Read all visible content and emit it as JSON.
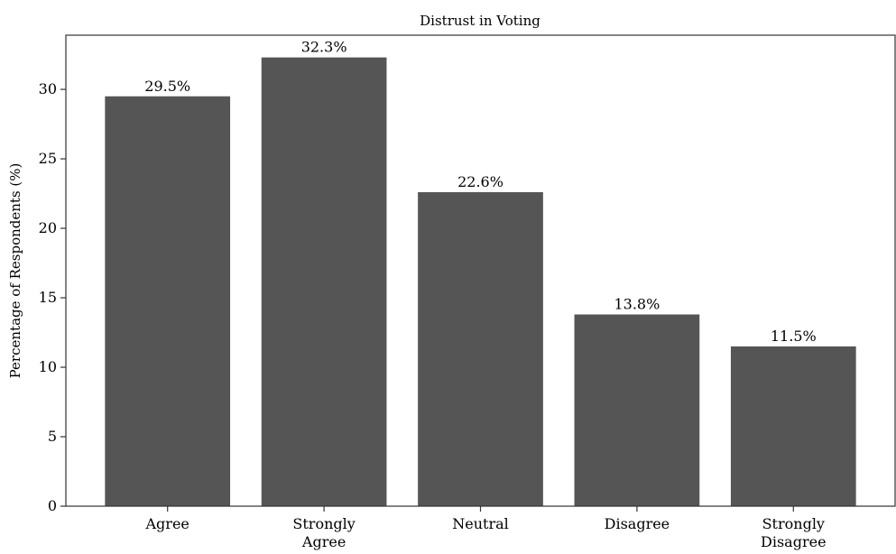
{
  "chart_data": {
    "type": "bar",
    "title": "Distrust in Voting",
    "xlabel": "",
    "ylabel": "Percentage of Respondents (%)",
    "categories": [
      [
        "Agree"
      ],
      [
        "Strongly",
        "Agree"
      ],
      [
        "Neutral"
      ],
      [
        "Disagree"
      ],
      [
        "Strongly",
        "Disagree"
      ]
    ],
    "values": [
      29.5,
      32.3,
      22.6,
      13.8,
      11.5
    ],
    "data_labels": [
      "29.5%",
      "32.3%",
      "22.6%",
      "13.8%",
      "11.5%"
    ],
    "ylim": [
      0,
      33.9
    ],
    "yticks": [
      0,
      5,
      10,
      15,
      20,
      25,
      30
    ],
    "ytick_labels": [
      "0",
      "5",
      "10",
      "15",
      "20",
      "25",
      "30"
    ],
    "bar_color": "#555555",
    "grid": false,
    "legend": "none"
  }
}
